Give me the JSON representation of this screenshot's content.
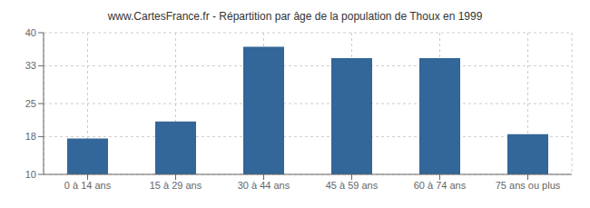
{
  "chart_data": {
    "type": "bar",
    "title": "www.CartesFrance.fr - Répartition par âge de la population de Thoux en 1999",
    "categories": [
      "0 à 14 ans",
      "15 à 29 ans",
      "30 à 44 ans",
      "45 à 59 ans",
      "60 à 74 ans",
      "75 ans ou plus"
    ],
    "values": [
      17.6,
      21.2,
      37.0,
      34.6,
      34.6,
      18.5
    ],
    "color": "#336699",
    "ylim": [
      10,
      40
    ],
    "yticks": [
      10,
      18,
      25,
      33,
      40
    ],
    "grid": true
  }
}
